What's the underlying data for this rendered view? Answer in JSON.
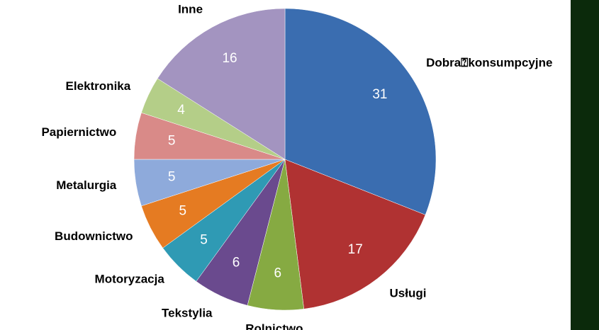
{
  "chart_data": {
    "type": "pie",
    "categories": [
      "Dobra⍰konsumpcyjne",
      "Usługi",
      "Rolnictwo",
      "Tekstylia",
      "Motoryzacja",
      "Budownictwo",
      "Metalurgia",
      "Papiernictwo",
      "Elektronika",
      "Inne"
    ],
    "values": [
      31,
      17,
      6,
      6,
      5,
      5,
      5,
      5,
      4,
      16
    ],
    "colors": [
      "#3a6db0",
      "#b03232",
      "#86aa42",
      "#6a4a8e",
      "#2f9ab4",
      "#e57b22",
      "#8eaadb",
      "#d98a88",
      "#b4ce88",
      "#a394c0"
    ]
  }
}
